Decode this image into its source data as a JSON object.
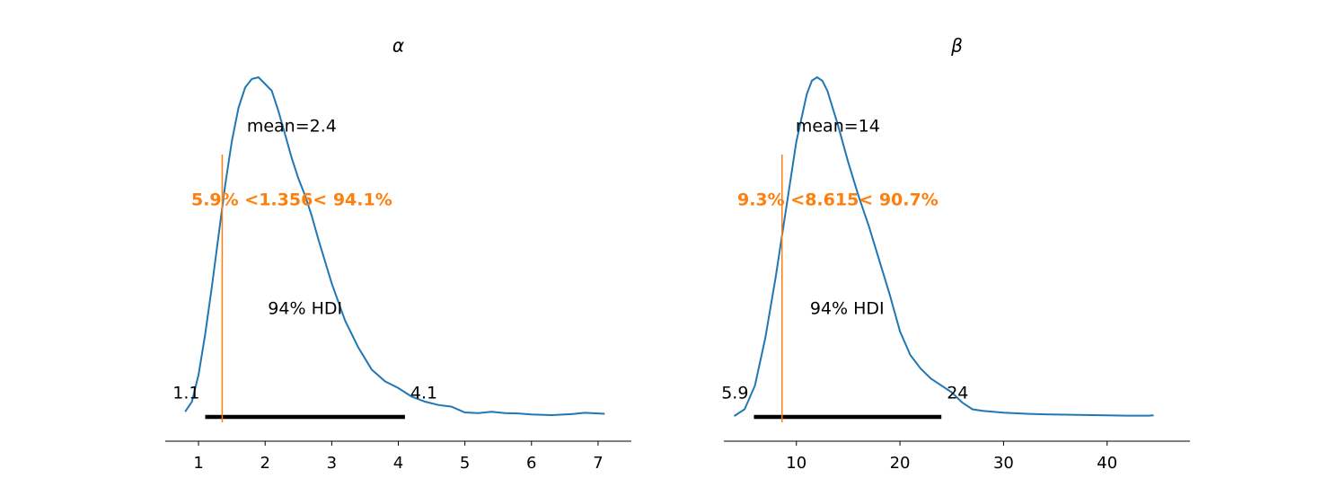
{
  "colors": {
    "kde": "#1f77b4",
    "reference": "#ff7f0e",
    "hdi": "#000000"
  },
  "chart_data": [
    {
      "type": "line",
      "title": "α",
      "xlim": [
        0.5,
        7.5
      ],
      "x_ticks": [
        1,
        2,
        3,
        4,
        5,
        6,
        7
      ],
      "x_tick_labels": [
        "1",
        "2",
        "3",
        "4",
        "5",
        "6",
        "7"
      ],
      "density": {
        "x": [
          0.8,
          0.9,
          1.0,
          1.1,
          1.2,
          1.3,
          1.4,
          1.5,
          1.6,
          1.7,
          1.8,
          1.9,
          2.0,
          2.1,
          2.2,
          2.3,
          2.4,
          2.5,
          2.6,
          2.7,
          2.8,
          3.0,
          3.2,
          3.4,
          3.6,
          3.8,
          4.0,
          4.2,
          4.4,
          4.6,
          4.8,
          5.0,
          5.2,
          5.4,
          5.6,
          5.8,
          6.0,
          6.3,
          6.6,
          6.8,
          7.1
        ],
        "y": [
          0.01,
          0.04,
          0.12,
          0.24,
          0.38,
          0.53,
          0.68,
          0.81,
          0.91,
          0.97,
          0.995,
          1.0,
          0.98,
          0.96,
          0.9,
          0.83,
          0.76,
          0.7,
          0.65,
          0.59,
          0.52,
          0.39,
          0.28,
          0.2,
          0.135,
          0.1,
          0.08,
          0.055,
          0.04,
          0.03,
          0.025,
          0.008,
          0.006,
          0.01,
          0.006,
          0.005,
          0.002,
          0.0,
          0.003,
          0.007,
          0.004
        ]
      },
      "mean_label": "mean=2.4",
      "mean_label_pos": [
        2.4,
        0.87
      ],
      "reference": {
        "value": 1.356,
        "label": "5.9% <1.356< 94.1%",
        "label_pos": [
          2.4,
          0.65
        ]
      },
      "hdi": {
        "low": 1.1,
        "high": 4.1,
        "label": "94% HDI",
        "low_label": "1.1",
        "high_label": "4.1",
        "label_pos": [
          2.6,
          0.32
        ]
      }
    },
    {
      "type": "line",
      "title": "β",
      "xlim": [
        3,
        48
      ],
      "x_ticks": [
        10,
        20,
        30,
        40
      ],
      "x_tick_labels": [
        "10",
        "20",
        "30",
        "40"
      ],
      "density": {
        "x": [
          4.0,
          5.0,
          6.0,
          7.0,
          8.0,
          9.0,
          10.0,
          11.0,
          11.5,
          12.0,
          12.5,
          13.0,
          14.0,
          15.0,
          16.0,
          17.0,
          18.0,
          19.0,
          20.0,
          21.0,
          22.0,
          23.0,
          24.0,
          25.0,
          26.0,
          27.0,
          28.0,
          30.0,
          32.0,
          34.0,
          36.0,
          38.0,
          40.0,
          42.0,
          44.0,
          44.5
        ],
        "y": [
          0.0,
          0.02,
          0.09,
          0.23,
          0.41,
          0.61,
          0.81,
          0.95,
          0.99,
          1.0,
          0.99,
          0.96,
          0.86,
          0.75,
          0.65,
          0.56,
          0.46,
          0.36,
          0.25,
          0.18,
          0.14,
          0.11,
          0.09,
          0.07,
          0.04,
          0.02,
          0.015,
          0.01,
          0.007,
          0.005,
          0.004,
          0.003,
          0.002,
          0.001,
          0.001,
          0.002
        ]
      },
      "mean_label": "mean=14",
      "mean_label_pos": [
        14,
        0.87
      ],
      "reference": {
        "value": 8.615,
        "label": "9.3% <8.615< 90.7%",
        "label_pos": [
          14,
          0.65
        ]
      },
      "hdi": {
        "low": 5.9,
        "high": 24,
        "label": "94% HDI",
        "low_label": "5.9",
        "high_label": "24",
        "label_pos": [
          14.9,
          0.32
        ]
      }
    }
  ]
}
